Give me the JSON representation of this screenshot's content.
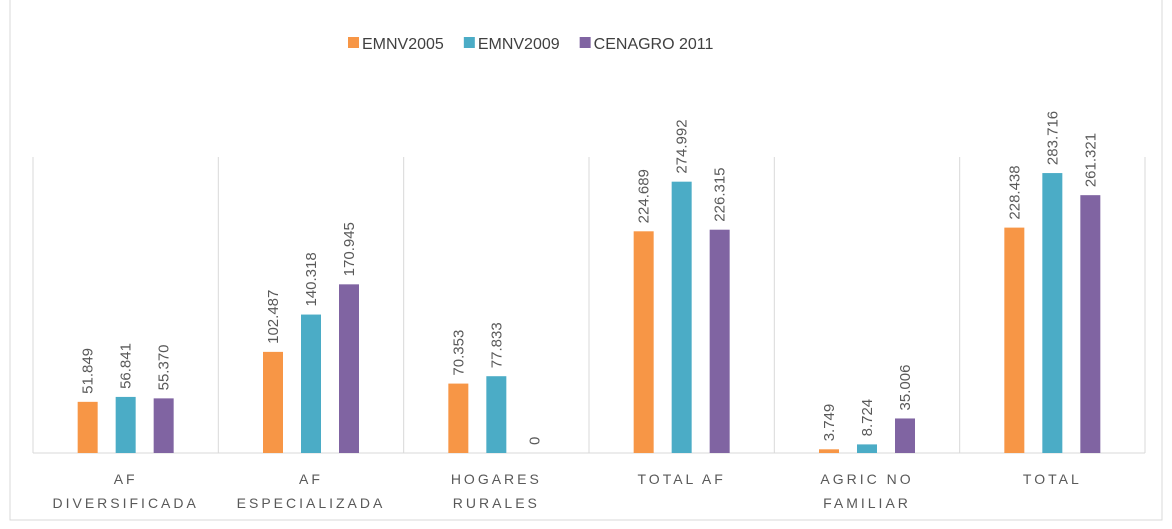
{
  "chart_data": {
    "type": "bar",
    "categories": [
      [
        "AF",
        "DIVERSIFICADA"
      ],
      [
        "AF",
        "ESPECIALIZADA"
      ],
      [
        "HOGARES",
        "RURALES"
      ],
      [
        "TOTAL AF"
      ],
      [
        "AGRIC NO",
        "FAMILIAR"
      ],
      [
        "TOTAL"
      ]
    ],
    "series": [
      {
        "name": "EMNV2005",
        "color": "#f79646",
        "values": [
          51849,
          102487,
          70353,
          224689,
          3749,
          228438
        ],
        "value_labels": [
          "51.849",
          "102.487",
          "70.353",
          "224.689",
          "3.749",
          "228.438"
        ]
      },
      {
        "name": "EMNV2009",
        "color": "#4bacc6",
        "values": [
          56841,
          140318,
          77833,
          274992,
          8724,
          283716
        ],
        "value_labels": [
          "56.841",
          "140.318",
          "77.833",
          "274.992",
          "8.724",
          "283.716"
        ]
      },
      {
        "name": "CENAGRO 2011",
        "color": "#8064a2",
        "values": [
          55370,
          170945,
          0,
          226315,
          35006,
          261321
        ],
        "value_labels": [
          "55.370",
          "170.945",
          "0",
          "226.315",
          "35.006",
          "261.321"
        ]
      }
    ],
    "ylim": [
      0,
      300000
    ],
    "legend": "top"
  }
}
